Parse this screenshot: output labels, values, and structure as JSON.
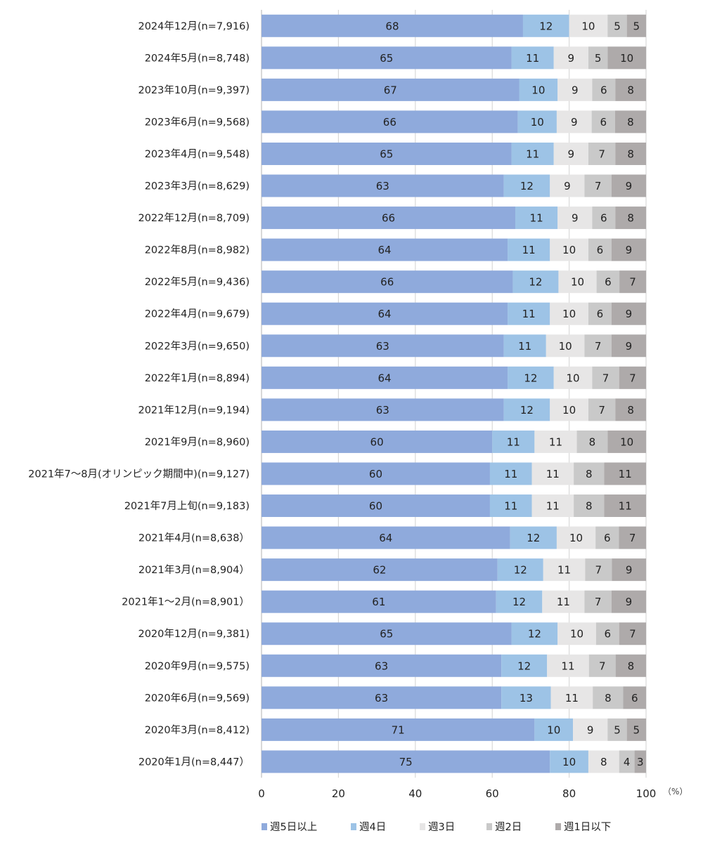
{
  "chart_data": {
    "type": "bar",
    "orientation": "horizontal",
    "stacked": true,
    "title": "",
    "xlabel": "",
    "ylabel": "",
    "x_unit": "（%）",
    "xlim": [
      0,
      100
    ],
    "x_ticks": [
      "0",
      "20",
      "40",
      "60",
      "80",
      "100"
    ],
    "grid": true,
    "legend_position": "bottom",
    "categories": [
      "2024年12月(n=7,916)",
      "2024年5月(n=8,748)",
      "2023年10月(n=9,397)",
      "2023年6月(n=9,568)",
      "2023年4月(n=9,548)",
      "2023年3月(n=8,629)",
      "2022年12月(n=8,709)",
      "2022年8月(n=8,982)",
      "2022年5月(n=9,436)",
      "2022年4月(n=9,679)",
      "2022年3月(n=9,650)",
      "2022年1月(n=8,894)",
      "2021年12月(n=9,194)",
      "2021年9月(n=8,960)",
      "2021年7～8月(オリンピック期間中)(n=9,127)",
      "2021年7月上旬(n=9,183)",
      "2021年4月(n=8,638）",
      "2021年3月(n=8,904）",
      "2021年1～2月(n=8,901）",
      "2020年12月(n=9,381)",
      "2020年9月(n=9,575)",
      "2020年6月(n=9,569)",
      "2020年3月(n=8,412)",
      "2020年1月(n=8,447）"
    ],
    "series": [
      {
        "name": "週5日以上",
        "color": "#8faadc",
        "values": [
          68,
          65,
          67,
          66,
          65,
          63,
          66,
          64,
          66,
          64,
          63,
          64,
          63,
          60,
          60,
          60,
          64,
          62,
          61,
          65,
          63,
          63,
          71,
          75
        ]
      },
      {
        "name": "週4日",
        "color": "#9dc3e6",
        "values": [
          12,
          11,
          10,
          10,
          11,
          12,
          11,
          11,
          12,
          11,
          11,
          12,
          12,
          11,
          11,
          11,
          12,
          12,
          12,
          12,
          12,
          13,
          10,
          10
        ]
      },
      {
        "name": "週3日",
        "color": "#e7e6e6",
        "values": [
          10,
          9,
          9,
          9,
          9,
          9,
          9,
          10,
          10,
          10,
          10,
          10,
          10,
          11,
          11,
          11,
          10,
          11,
          11,
          10,
          11,
          11,
          9,
          8
        ]
      },
      {
        "name": "週2日",
        "color": "#c9c9c9",
        "values": [
          5,
          5,
          6,
          6,
          7,
          7,
          6,
          6,
          6,
          6,
          7,
          7,
          7,
          8,
          8,
          8,
          6,
          7,
          7,
          6,
          7,
          8,
          5,
          4
        ]
      },
      {
        "name": "週1日以下",
        "color": "#aeaaaa",
        "values": [
          5,
          10,
          8,
          8,
          8,
          9,
          8,
          9,
          7,
          9,
          9,
          7,
          8,
          10,
          11,
          11,
          7,
          9,
          9,
          7,
          8,
          6,
          5,
          3
        ]
      }
    ]
  }
}
